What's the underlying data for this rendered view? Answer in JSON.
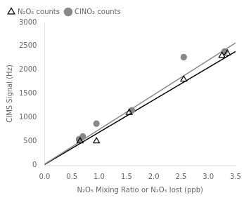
{
  "chart_data": {
    "type": "scatter",
    "xlabel": "N₂O₅ Mixing Ratio or N₂O₅ lost (ppb)",
    "ylabel": "CIMS Signal (Hz)",
    "xlim": [
      0.0,
      3.5
    ],
    "ylim": [
      0,
      3000
    ],
    "xticks": [
      {
        "value": 0,
        "label": "0.0"
      },
      0.5,
      {
        "value": 1,
        "label": "1.0"
      },
      1.5,
      {
        "value": 2,
        "label": "2.0"
      },
      2.5,
      {
        "value": 3,
        "label": "3.0"
      },
      3.5
    ],
    "yticks": [
      0,
      500,
      1000,
      1500,
      2000,
      2500,
      3000
    ],
    "grid": false,
    "legend": "upper left",
    "series": [
      {
        "type": "line",
        "color": "#888888",
        "x": [
          0.0,
          3.5
        ],
        "values": [
          15,
          2570
        ]
      },
      {
        "type": "line",
        "color": "black",
        "x": [
          0.0,
          3.5
        ],
        "values": [
          10,
          2390
        ]
      },
      {
        "type": "scatter",
        "name": "N₂O₅ counts",
        "marker": "open_triangle",
        "color": "black",
        "x": [
          0.65,
          0.95,
          1.55,
          2.55,
          3.25,
          3.35
        ],
        "values": [
          500,
          500,
          1100,
          1800,
          2300,
          2350
        ]
      },
      {
        "type": "scatter",
        "name": "ClNO₂ counts",
        "marker": "circle",
        "color": "#888888",
        "x": [
          0.63,
          0.7,
          0.95,
          1.6,
          2.55,
          3.3
        ],
        "values": [
          540,
          600,
          870,
          1150,
          2270,
          2390
        ]
      }
    ]
  }
}
